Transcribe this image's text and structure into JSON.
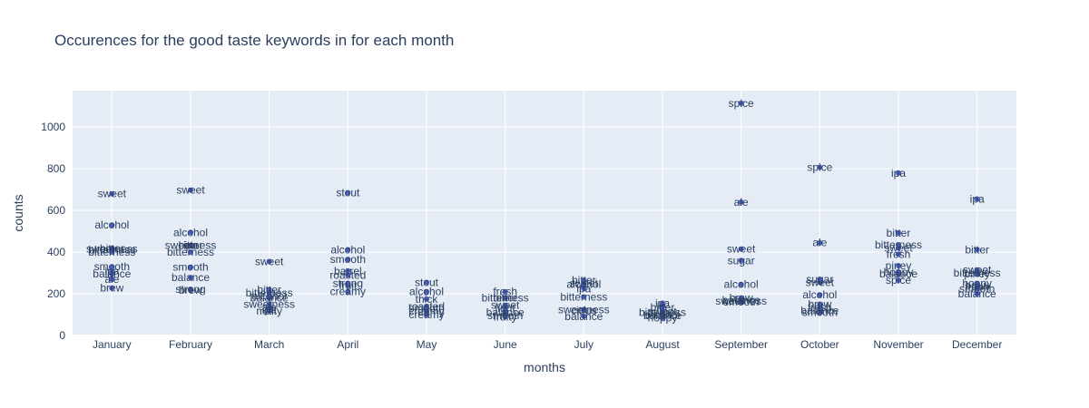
{
  "chart_data": {
    "type": "scatter",
    "title": "Occurences for the good taste keywords in for each month",
    "xlabel": "months",
    "ylabel": "counts",
    "categories": [
      "January",
      "February",
      "March",
      "April",
      "May",
      "June",
      "July",
      "August",
      "September",
      "October",
      "November",
      "December"
    ],
    "ylim": [
      0,
      1175
    ],
    "yticks": [
      0,
      200,
      400,
      600,
      800,
      1000
    ],
    "grid": true,
    "marker_color": "#4c5fc7",
    "plot_bg": "#e5ecf6",
    "text_color": "#2a3f5f",
    "points": [
      {
        "x": "January",
        "y": 680,
        "label": "sweet"
      },
      {
        "x": "January",
        "y": 530,
        "label": "alcohol"
      },
      {
        "x": "January",
        "y": 418,
        "label": "bitter"
      },
      {
        "x": "January",
        "y": 415,
        "label": "sweetness"
      },
      {
        "x": "January",
        "y": 412,
        "label": "bitterness"
      },
      {
        "x": "January",
        "y": 400,
        "label": "bitterness"
      },
      {
        "x": "January",
        "y": 330,
        "label": "smooth"
      },
      {
        "x": "January",
        "y": 310,
        "label": "ipa"
      },
      {
        "x": "January",
        "y": 295,
        "label": "balance"
      },
      {
        "x": "January",
        "y": 270,
        "label": "ale"
      },
      {
        "x": "January",
        "y": 228,
        "label": "brew"
      },
      {
        "x": "February",
        "y": 698,
        "label": "sweet"
      },
      {
        "x": "February",
        "y": 495,
        "label": "alcohol"
      },
      {
        "x": "February",
        "y": 432,
        "label": "sweetness"
      },
      {
        "x": "February",
        "y": 432,
        "label": "bitter"
      },
      {
        "x": "February",
        "y": 432,
        "label": "ipa"
      },
      {
        "x": "February",
        "y": 400,
        "label": "bitterness"
      },
      {
        "x": "February",
        "y": 328,
        "label": "smooth"
      },
      {
        "x": "February",
        "y": 278,
        "label": "balance"
      },
      {
        "x": "February",
        "y": 222,
        "label": "strong"
      },
      {
        "x": "February",
        "y": 218,
        "label": "brew"
      },
      {
        "x": "March",
        "y": 355,
        "label": "sweet"
      },
      {
        "x": "March",
        "y": 220,
        "label": "bitter"
      },
      {
        "x": "March",
        "y": 205,
        "label": "bitterness"
      },
      {
        "x": "March",
        "y": 190,
        "label": "alcohol"
      },
      {
        "x": "March",
        "y": 180,
        "label": "balance"
      },
      {
        "x": "March",
        "y": 150,
        "label": "sweetness"
      },
      {
        "x": "March",
        "y": 135,
        "label": "ale"
      },
      {
        "x": "March",
        "y": 125,
        "label": "ipa"
      },
      {
        "x": "March",
        "y": 118,
        "label": "malty"
      },
      {
        "x": "April",
        "y": 685,
        "label": "stout"
      },
      {
        "x": "April",
        "y": 412,
        "label": "alcohol"
      },
      {
        "x": "April",
        "y": 365,
        "label": "smooth"
      },
      {
        "x": "April",
        "y": 310,
        "label": "barrel"
      },
      {
        "x": "April",
        "y": 290,
        "label": "roasted"
      },
      {
        "x": "April",
        "y": 250,
        "label": "strong"
      },
      {
        "x": "April",
        "y": 240,
        "label": "fruit"
      },
      {
        "x": "April",
        "y": 210,
        "label": "creamy"
      },
      {
        "x": "May",
        "y": 255,
        "label": "stout"
      },
      {
        "x": "May",
        "y": 210,
        "label": "alcohol"
      },
      {
        "x": "May",
        "y": 175,
        "label": "thick"
      },
      {
        "x": "May",
        "y": 140,
        "label": "roasted"
      },
      {
        "x": "May",
        "y": 130,
        "label": "smooth"
      },
      {
        "x": "May",
        "y": 115,
        "label": "creamy"
      },
      {
        "x": "May",
        "y": 100,
        "label": "creamy"
      },
      {
        "x": "June",
        "y": 210,
        "label": "fresh"
      },
      {
        "x": "June",
        "y": 180,
        "label": "bitterness"
      },
      {
        "x": "June",
        "y": 180,
        "label": "bitter"
      },
      {
        "x": "June",
        "y": 145,
        "label": "sweet"
      },
      {
        "x": "June",
        "y": 130,
        "label": "light"
      },
      {
        "x": "June",
        "y": 110,
        "label": "balance"
      },
      {
        "x": "June",
        "y": 95,
        "label": "smooth"
      },
      {
        "x": "June",
        "y": 90,
        "label": "fruity"
      },
      {
        "x": "July",
        "y": 265,
        "label": "bitter"
      },
      {
        "x": "July",
        "y": 250,
        "label": "sweet"
      },
      {
        "x": "July",
        "y": 245,
        "label": "alcohol"
      },
      {
        "x": "July",
        "y": 225,
        "label": "ipa"
      },
      {
        "x": "July",
        "y": 185,
        "label": "bitterness"
      },
      {
        "x": "July",
        "y": 125,
        "label": "sweetness"
      },
      {
        "x": "July",
        "y": 120,
        "label": "citrus"
      },
      {
        "x": "July",
        "y": 92,
        "label": "balance"
      },
      {
        "x": "August",
        "y": 155,
        "label": "ipa"
      },
      {
        "x": "August",
        "y": 135,
        "label": "bitter"
      },
      {
        "x": "August",
        "y": 115,
        "label": "sweet"
      },
      {
        "x": "August",
        "y": 110,
        "label": "bitterness"
      },
      {
        "x": "August",
        "y": 100,
        "label": "alcohol"
      },
      {
        "x": "August",
        "y": 95,
        "label": "balance"
      },
      {
        "x": "August",
        "y": 85,
        "label": "hoppy"
      },
      {
        "x": "September",
        "y": 1115,
        "label": "spice"
      },
      {
        "x": "September",
        "y": 640,
        "label": "ale"
      },
      {
        "x": "September",
        "y": 415,
        "label": "sweet"
      },
      {
        "x": "September",
        "y": 360,
        "label": "sugar"
      },
      {
        "x": "September",
        "y": 245,
        "label": "alcohol"
      },
      {
        "x": "September",
        "y": 180,
        "label": "brew"
      },
      {
        "x": "September",
        "y": 170,
        "label": "balance"
      },
      {
        "x": "September",
        "y": 165,
        "label": "sweetness"
      },
      {
        "x": "September",
        "y": 160,
        "label": "smooth"
      },
      {
        "x": "October",
        "y": 808,
        "label": "spice"
      },
      {
        "x": "October",
        "y": 445,
        "label": "ale"
      },
      {
        "x": "October",
        "y": 270,
        "label": "sugar"
      },
      {
        "x": "October",
        "y": 255,
        "label": "sweet"
      },
      {
        "x": "October",
        "y": 195,
        "label": "alcohol"
      },
      {
        "x": "October",
        "y": 150,
        "label": "brew"
      },
      {
        "x": "October",
        "y": 135,
        "label": "fresh"
      },
      {
        "x": "October",
        "y": 120,
        "label": "balance"
      },
      {
        "x": "October",
        "y": 110,
        "label": "smooth"
      },
      {
        "x": "November",
        "y": 780,
        "label": "ipa"
      },
      {
        "x": "November",
        "y": 492,
        "label": "bitter"
      },
      {
        "x": "November",
        "y": 435,
        "label": "bitterness"
      },
      {
        "x": "November",
        "y": 420,
        "label": "sweet"
      },
      {
        "x": "November",
        "y": 390,
        "label": "fresh"
      },
      {
        "x": "November",
        "y": 335,
        "label": "piney"
      },
      {
        "x": "November",
        "y": 305,
        "label": "hoppy"
      },
      {
        "x": "November",
        "y": 295,
        "label": "balance"
      },
      {
        "x": "November",
        "y": 265,
        "label": "spice"
      },
      {
        "x": "December",
        "y": 655,
        "label": "ipa"
      },
      {
        "x": "December",
        "y": 412,
        "label": "bitter"
      },
      {
        "x": "December",
        "y": 315,
        "label": "sweet"
      },
      {
        "x": "December",
        "y": 300,
        "label": "bitterness"
      },
      {
        "x": "December",
        "y": 295,
        "label": "piney"
      },
      {
        "x": "December",
        "y": 250,
        "label": "hoppy"
      },
      {
        "x": "December",
        "y": 240,
        "label": "brew"
      },
      {
        "x": "December",
        "y": 232,
        "label": "fresh"
      },
      {
        "x": "December",
        "y": 225,
        "label": "smooth"
      },
      {
        "x": "December",
        "y": 200,
        "label": "balance"
      }
    ]
  }
}
